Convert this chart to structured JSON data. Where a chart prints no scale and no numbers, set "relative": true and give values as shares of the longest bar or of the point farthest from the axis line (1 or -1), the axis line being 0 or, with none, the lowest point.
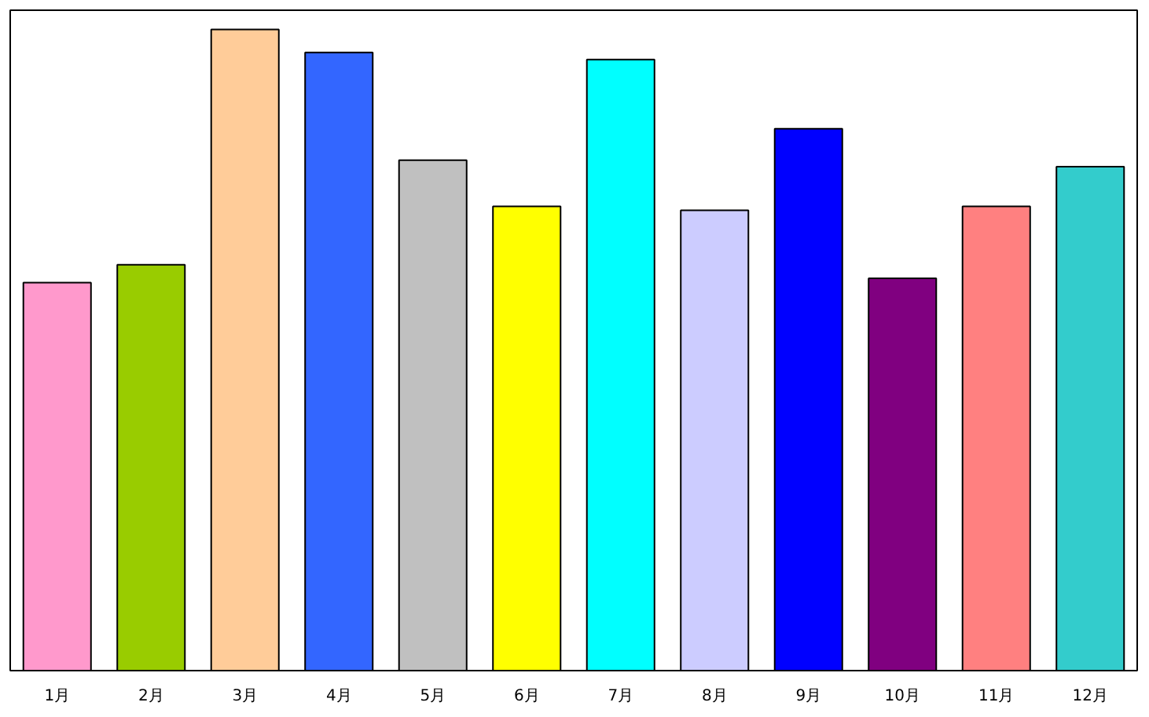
{
  "chart_data": {
    "type": "bar",
    "relative": true,
    "categories": [
      "1月",
      "2月",
      "3月",
      "4月",
      "5月",
      "6月",
      "7月",
      "8月",
      "9月",
      "10月",
      "11月",
      "12月"
    ],
    "values": [
      0.605,
      0.633,
      1,
      0.964,
      0.796,
      0.724,
      0.953,
      0.718,
      0.845,
      0.612,
      0.724,
      0.786
    ],
    "colors": [
      "#ff99cc",
      "#99cc00",
      "#ffcc99",
      "#3366ff",
      "#c0c0c0",
      "#ffff00",
      "#00ffff",
      "#ccccff",
      "#0000ff",
      "#800080",
      "#ff8080",
      "#33cccc"
    ],
    "orientation": "vertical"
  }
}
